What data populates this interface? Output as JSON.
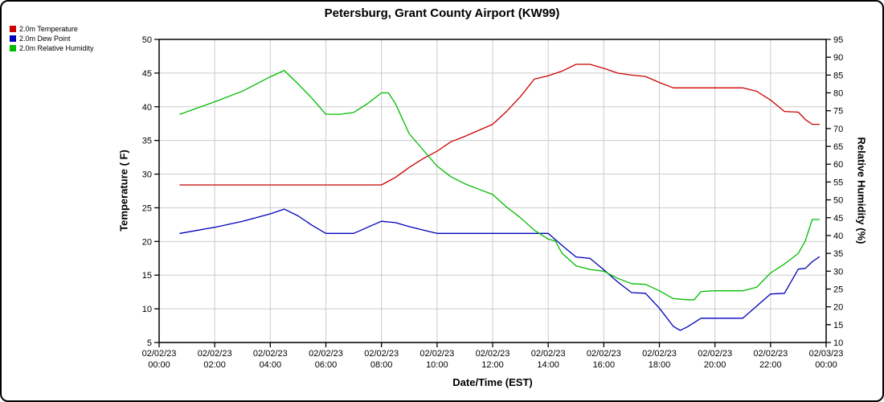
{
  "title": "Petersburg, Grant County Airport (KW99)",
  "legend": [
    {
      "key": "temperature",
      "label": "2.0m Temperature",
      "color": "#cc0000"
    },
    {
      "key": "dew-point",
      "label": "2.0m Dew Point",
      "color": "#0000bb"
    },
    {
      "key": "relative-humidity",
      "label": "2.0m Relative Humidity",
      "color": "#00bb00"
    }
  ],
  "chart_data": {
    "type": "line",
    "title": "Petersburg, Grant County Airport (KW99)",
    "xlabel": "Date/Time (EST)",
    "ylabel_left": "Temperature ( F)",
    "ylabel_right": "Relative Humidity (%)",
    "y_left": {
      "min": 5,
      "max": 50,
      "step": 5
    },
    "y_right": {
      "min": 10,
      "max": 95,
      "step": 5
    },
    "x_range_hours": [
      0,
      24
    ],
    "grid": true,
    "legend_position": "top-left",
    "x_ticks": [
      {
        "hour": 0,
        "date": "02/02/23",
        "time": "00:00"
      },
      {
        "hour": 2,
        "date": "02/02/23",
        "time": "02:00"
      },
      {
        "hour": 4,
        "date": "02/02/23",
        "time": "04:00"
      },
      {
        "hour": 6,
        "date": "02/02/23",
        "time": "06:00"
      },
      {
        "hour": 8,
        "date": "02/02/23",
        "time": "08:00"
      },
      {
        "hour": 10,
        "date": "02/02/23",
        "time": "10:00"
      },
      {
        "hour": 12,
        "date": "02/02/23",
        "time": "12:00"
      },
      {
        "hour": 14,
        "date": "02/02/23",
        "time": "14:00"
      },
      {
        "hour": 16,
        "date": "02/02/23",
        "time": "16:00"
      },
      {
        "hour": 18,
        "date": "02/02/23",
        "time": "18:00"
      },
      {
        "hour": 20,
        "date": "02/02/23",
        "time": "20:00"
      },
      {
        "hour": 22,
        "date": "02/02/23",
        "time": "22:00"
      },
      {
        "hour": 24,
        "date": "02/03/23",
        "time": "00:00"
      }
    ],
    "series": [
      {
        "key": "temperature",
        "name": "2.0m Temperature",
        "axis": "left",
        "units": "F",
        "color": "#cc0000",
        "points": [
          [
            0.75,
            28.4
          ],
          [
            2,
            28.4
          ],
          [
            3,
            28.4
          ],
          [
            4,
            28.4
          ],
          [
            5,
            28.4
          ],
          [
            6,
            28.4
          ],
          [
            7,
            28.4
          ],
          [
            8,
            28.4
          ],
          [
            8.5,
            29.5
          ],
          [
            9,
            31.0
          ],
          [
            9.5,
            32.3
          ],
          [
            10,
            33.4
          ],
          [
            10.5,
            34.8
          ],
          [
            11,
            35.6
          ],
          [
            11.5,
            36.5
          ],
          [
            12,
            37.4
          ],
          [
            12.5,
            39.3
          ],
          [
            13,
            41.5
          ],
          [
            13.5,
            44.1
          ],
          [
            14,
            44.6
          ],
          [
            14.5,
            45.3
          ],
          [
            15,
            46.3
          ],
          [
            15.5,
            46.3
          ],
          [
            16,
            45.7
          ],
          [
            16.5,
            45.0
          ],
          [
            17,
            44.7
          ],
          [
            17.5,
            44.5
          ],
          [
            18,
            43.6
          ],
          [
            18.5,
            42.8
          ],
          [
            19,
            42.8
          ],
          [
            19.5,
            42.8
          ],
          [
            20,
            42.8
          ],
          [
            20.5,
            42.8
          ],
          [
            21,
            42.8
          ],
          [
            21.5,
            42.3
          ],
          [
            22,
            41.0
          ],
          [
            22.5,
            39.3
          ],
          [
            23,
            39.2
          ],
          [
            23.25,
            38.1
          ],
          [
            23.5,
            37.4
          ],
          [
            23.75,
            37.4
          ]
        ]
      },
      {
        "key": "dew-point",
        "name": "2.0m Dew Point",
        "axis": "left",
        "units": "F",
        "color": "#0000bb",
        "points": [
          [
            0.75,
            21.2
          ],
          [
            2,
            22.1
          ],
          [
            3,
            23.0
          ],
          [
            4,
            24.1
          ],
          [
            4.5,
            24.8
          ],
          [
            5,
            23.8
          ],
          [
            5.5,
            22.4
          ],
          [
            6,
            21.2
          ],
          [
            6.5,
            21.2
          ],
          [
            7,
            21.2
          ],
          [
            7.5,
            22.1
          ],
          [
            8,
            23.0
          ],
          [
            8.5,
            22.8
          ],
          [
            9,
            22.2
          ],
          [
            9.5,
            21.7
          ],
          [
            10,
            21.2
          ],
          [
            11,
            21.2
          ],
          [
            12,
            21.2
          ],
          [
            13,
            21.2
          ],
          [
            14,
            21.2
          ],
          [
            14.5,
            19.4
          ],
          [
            15,
            17.7
          ],
          [
            15.5,
            17.5
          ],
          [
            16,
            15.8
          ],
          [
            16.5,
            14.0
          ],
          [
            17,
            12.4
          ],
          [
            17.5,
            12.3
          ],
          [
            18,
            10.1
          ],
          [
            18.5,
            7.4
          ],
          [
            18.75,
            6.8
          ],
          [
            19,
            7.3
          ],
          [
            19.5,
            8.6
          ],
          [
            20,
            8.6
          ],
          [
            20.5,
            8.6
          ],
          [
            21,
            8.6
          ],
          [
            21.5,
            10.4
          ],
          [
            22,
            12.2
          ],
          [
            22.5,
            12.3
          ],
          [
            23,
            15.9
          ],
          [
            23.25,
            16.0
          ],
          [
            23.5,
            17.0
          ],
          [
            23.75,
            17.7
          ]
        ]
      },
      {
        "key": "relative-humidity",
        "name": "2.0m Relative Humidity",
        "axis": "right",
        "units": "%",
        "color": "#00bb00",
        "points": [
          [
            0.75,
            74
          ],
          [
            2,
            77.5
          ],
          [
            3,
            80.5
          ],
          [
            4,
            84.5
          ],
          [
            4.5,
            86.3
          ],
          [
            5,
            82.5
          ],
          [
            5.5,
            78.5
          ],
          [
            6,
            74
          ],
          [
            6.5,
            74
          ],
          [
            7,
            74.5
          ],
          [
            7.5,
            77
          ],
          [
            8,
            80
          ],
          [
            8.25,
            80
          ],
          [
            8.5,
            77
          ],
          [
            9,
            68.5
          ],
          [
            9.5,
            64
          ],
          [
            10,
            59.5
          ],
          [
            10.5,
            56.5
          ],
          [
            11,
            54.5
          ],
          [
            11.5,
            53
          ],
          [
            12,
            51.5
          ],
          [
            12.5,
            48
          ],
          [
            13,
            45
          ],
          [
            13.5,
            41.5
          ],
          [
            14,
            39
          ],
          [
            14.25,
            38.5
          ],
          [
            14.5,
            35
          ],
          [
            15,
            31.5
          ],
          [
            15.5,
            30.5
          ],
          [
            16,
            30
          ],
          [
            16.5,
            28
          ],
          [
            17,
            26.5
          ],
          [
            17.5,
            26.3
          ],
          [
            18,
            24.5
          ],
          [
            18.5,
            22.3
          ],
          [
            19,
            22
          ],
          [
            19.25,
            22
          ],
          [
            19.5,
            24.3
          ],
          [
            20,
            24.5
          ],
          [
            20.5,
            24.5
          ],
          [
            21,
            24.5
          ],
          [
            21.5,
            25.5
          ],
          [
            22,
            29.5
          ],
          [
            22.5,
            32
          ],
          [
            23,
            35
          ],
          [
            23.25,
            38.5
          ],
          [
            23.5,
            44.5
          ],
          [
            23.75,
            44.5
          ]
        ]
      }
    ]
  }
}
